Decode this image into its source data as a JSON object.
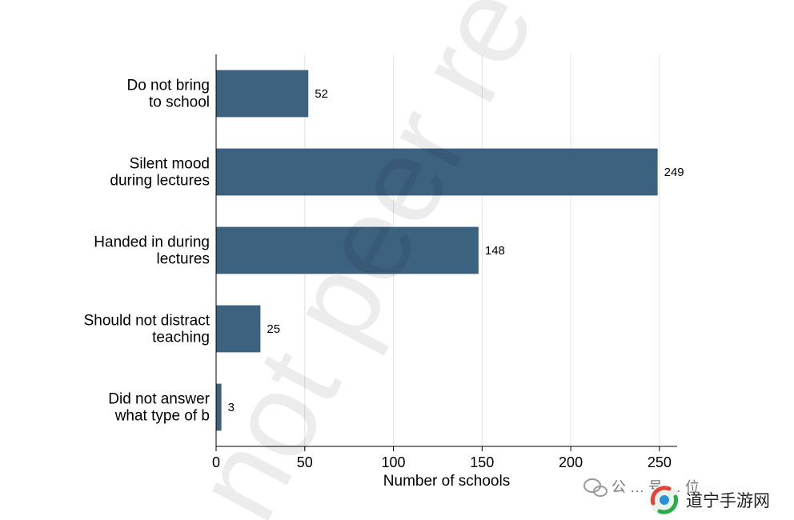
{
  "chart_data": {
    "type": "bar",
    "orientation": "horizontal",
    "categories": [
      [
        "Do not bring",
        "to school"
      ],
      [
        "Silent mood",
        "during lectures"
      ],
      [
        "Handed in during",
        "lectures"
      ],
      [
        "Should not distract",
        "teaching"
      ],
      [
        "Did not answer",
        "what type of b"
      ]
    ],
    "values": [
      52,
      249,
      148,
      25,
      3
    ],
    "data_labels": [
      "52",
      "249",
      "148",
      "25",
      "3"
    ],
    "xlabel": "Number of schools",
    "ylabel": "",
    "xlim": [
      0,
      260
    ],
    "xticks": [
      0,
      50,
      100,
      150,
      200,
      250
    ],
    "grid": "vertical",
    "bar_color": "#3d6280"
  },
  "watermark": {
    "text": "not peer re"
  },
  "brand": {
    "text": "道宁手游网",
    "faint_text": "公 … 号 … 位"
  }
}
